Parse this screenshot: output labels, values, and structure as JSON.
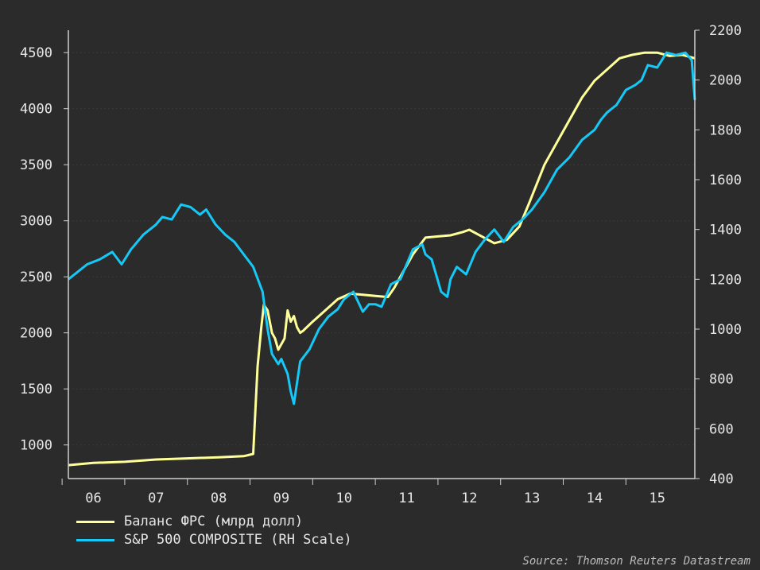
{
  "chart_data": {
    "type": "line",
    "source": "Source: Thomson Reuters Datastream",
    "colors": {
      "background": "#2b2b2b",
      "axis": "#d0d0d0",
      "grid": "#3a3a3a",
      "fed": "#ffff99",
      "sp": "#16c8f5"
    },
    "x_ticks": [
      "06",
      "07",
      "08",
      "09",
      "10",
      "11",
      "12",
      "13",
      "14",
      "15"
    ],
    "x_tick_pos": [
      2006,
      2007,
      2008,
      2009,
      2010,
      2011,
      2012,
      2013,
      2014,
      2015
    ],
    "xlim": [
      2005.6,
      2015.6
    ],
    "y_left": {
      "lim": [
        700,
        4700
      ],
      "ticks": [
        1000,
        1500,
        2000,
        2500,
        3000,
        3500,
        4000,
        4500
      ]
    },
    "y_right": {
      "lim": [
        400,
        2200
      ],
      "ticks": [
        400,
        600,
        800,
        1000,
        1200,
        1400,
        1600,
        1800,
        2000,
        2200
      ]
    },
    "grid": true,
    "series": [
      {
        "name": "Баланс ФРС (млрд долл)",
        "axis": "left",
        "color": "#ffff99",
        "x": [
          2005.6,
          2006.0,
          2006.5,
          2007.0,
          2007.5,
          2008.0,
          2008.4,
          2008.55,
          2008.62,
          2008.68,
          2008.72,
          2008.78,
          2008.85,
          2008.9,
          2008.95,
          2009.05,
          2009.1,
          2009.15,
          2009.2,
          2009.25,
          2009.3,
          2009.35,
          2009.5,
          2009.7,
          2009.9,
          2010.1,
          2010.3,
          2010.5,
          2010.7,
          2010.8,
          2010.9,
          2011.0,
          2011.1,
          2011.3,
          2011.5,
          2011.7,
          2011.9,
          2012.0,
          2012.2,
          2012.4,
          2012.6,
          2012.8,
          2012.95,
          2013.2,
          2013.5,
          2013.8,
          2014.0,
          2014.2,
          2014.4,
          2014.6,
          2014.8,
          2015.0,
          2015.2,
          2015.4,
          2015.6
        ],
        "y": [
          820,
          840,
          850,
          870,
          880,
          890,
          900,
          920,
          1700,
          2050,
          2250,
          2200,
          2000,
          1950,
          1850,
          1950,
          2200,
          2100,
          2150,
          2050,
          2000,
          2020,
          2100,
          2200,
          2300,
          2350,
          2340,
          2330,
          2320,
          2400,
          2500,
          2600,
          2700,
          2850,
          2860,
          2870,
          2900,
          2920,
          2860,
          2800,
          2830,
          2950,
          3150,
          3500,
          3800,
          4100,
          4250,
          4350,
          4450,
          4480,
          4500,
          4500,
          4470,
          4480,
          4450
        ]
      },
      {
        "name": "S&P 500 COMPOSITE (RH Scale)",
        "axis": "right",
        "color": "#16c8f5",
        "x": [
          2005.6,
          2005.75,
          2005.9,
          2006.1,
          2006.3,
          2006.45,
          2006.6,
          2006.8,
          2007.0,
          2007.1,
          2007.25,
          2007.4,
          2007.55,
          2007.7,
          2007.8,
          2007.95,
          2008.1,
          2008.25,
          2008.4,
          2008.55,
          2008.7,
          2008.78,
          2008.85,
          2008.95,
          2009.0,
          2009.1,
          2009.15,
          2009.2,
          2009.3,
          2009.45,
          2009.6,
          2009.75,
          2009.9,
          2010.0,
          2010.15,
          2010.3,
          2010.4,
          2010.5,
          2010.6,
          2010.75,
          2010.9,
          2011.0,
          2011.1,
          2011.25,
          2011.3,
          2011.4,
          2011.55,
          2011.65,
          2011.7,
          2011.8,
          2011.95,
          2012.1,
          2012.25,
          2012.4,
          2012.55,
          2012.7,
          2012.85,
          2013.0,
          2013.2,
          2013.4,
          2013.6,
          2013.8,
          2014.0,
          2014.1,
          2014.2,
          2014.35,
          2014.5,
          2014.65,
          2014.75,
          2014.85,
          2015.0,
          2015.15,
          2015.3,
          2015.45,
          2015.55,
          2015.6
        ],
        "y": [
          1200,
          1230,
          1260,
          1280,
          1310,
          1260,
          1320,
          1380,
          1420,
          1450,
          1440,
          1500,
          1490,
          1460,
          1480,
          1420,
          1380,
          1350,
          1300,
          1250,
          1150,
          1000,
          900,
          860,
          880,
          820,
          750,
          700,
          870,
          920,
          1000,
          1050,
          1080,
          1120,
          1150,
          1070,
          1100,
          1100,
          1090,
          1180,
          1200,
          1260,
          1320,
          1340,
          1300,
          1280,
          1150,
          1130,
          1200,
          1250,
          1220,
          1310,
          1360,
          1400,
          1350,
          1410,
          1440,
          1480,
          1550,
          1640,
          1690,
          1760,
          1800,
          1840,
          1870,
          1900,
          1960,
          1980,
          2000,
          2060,
          2050,
          2110,
          2100,
          2110,
          2080,
          1920
        ]
      }
    ]
  }
}
